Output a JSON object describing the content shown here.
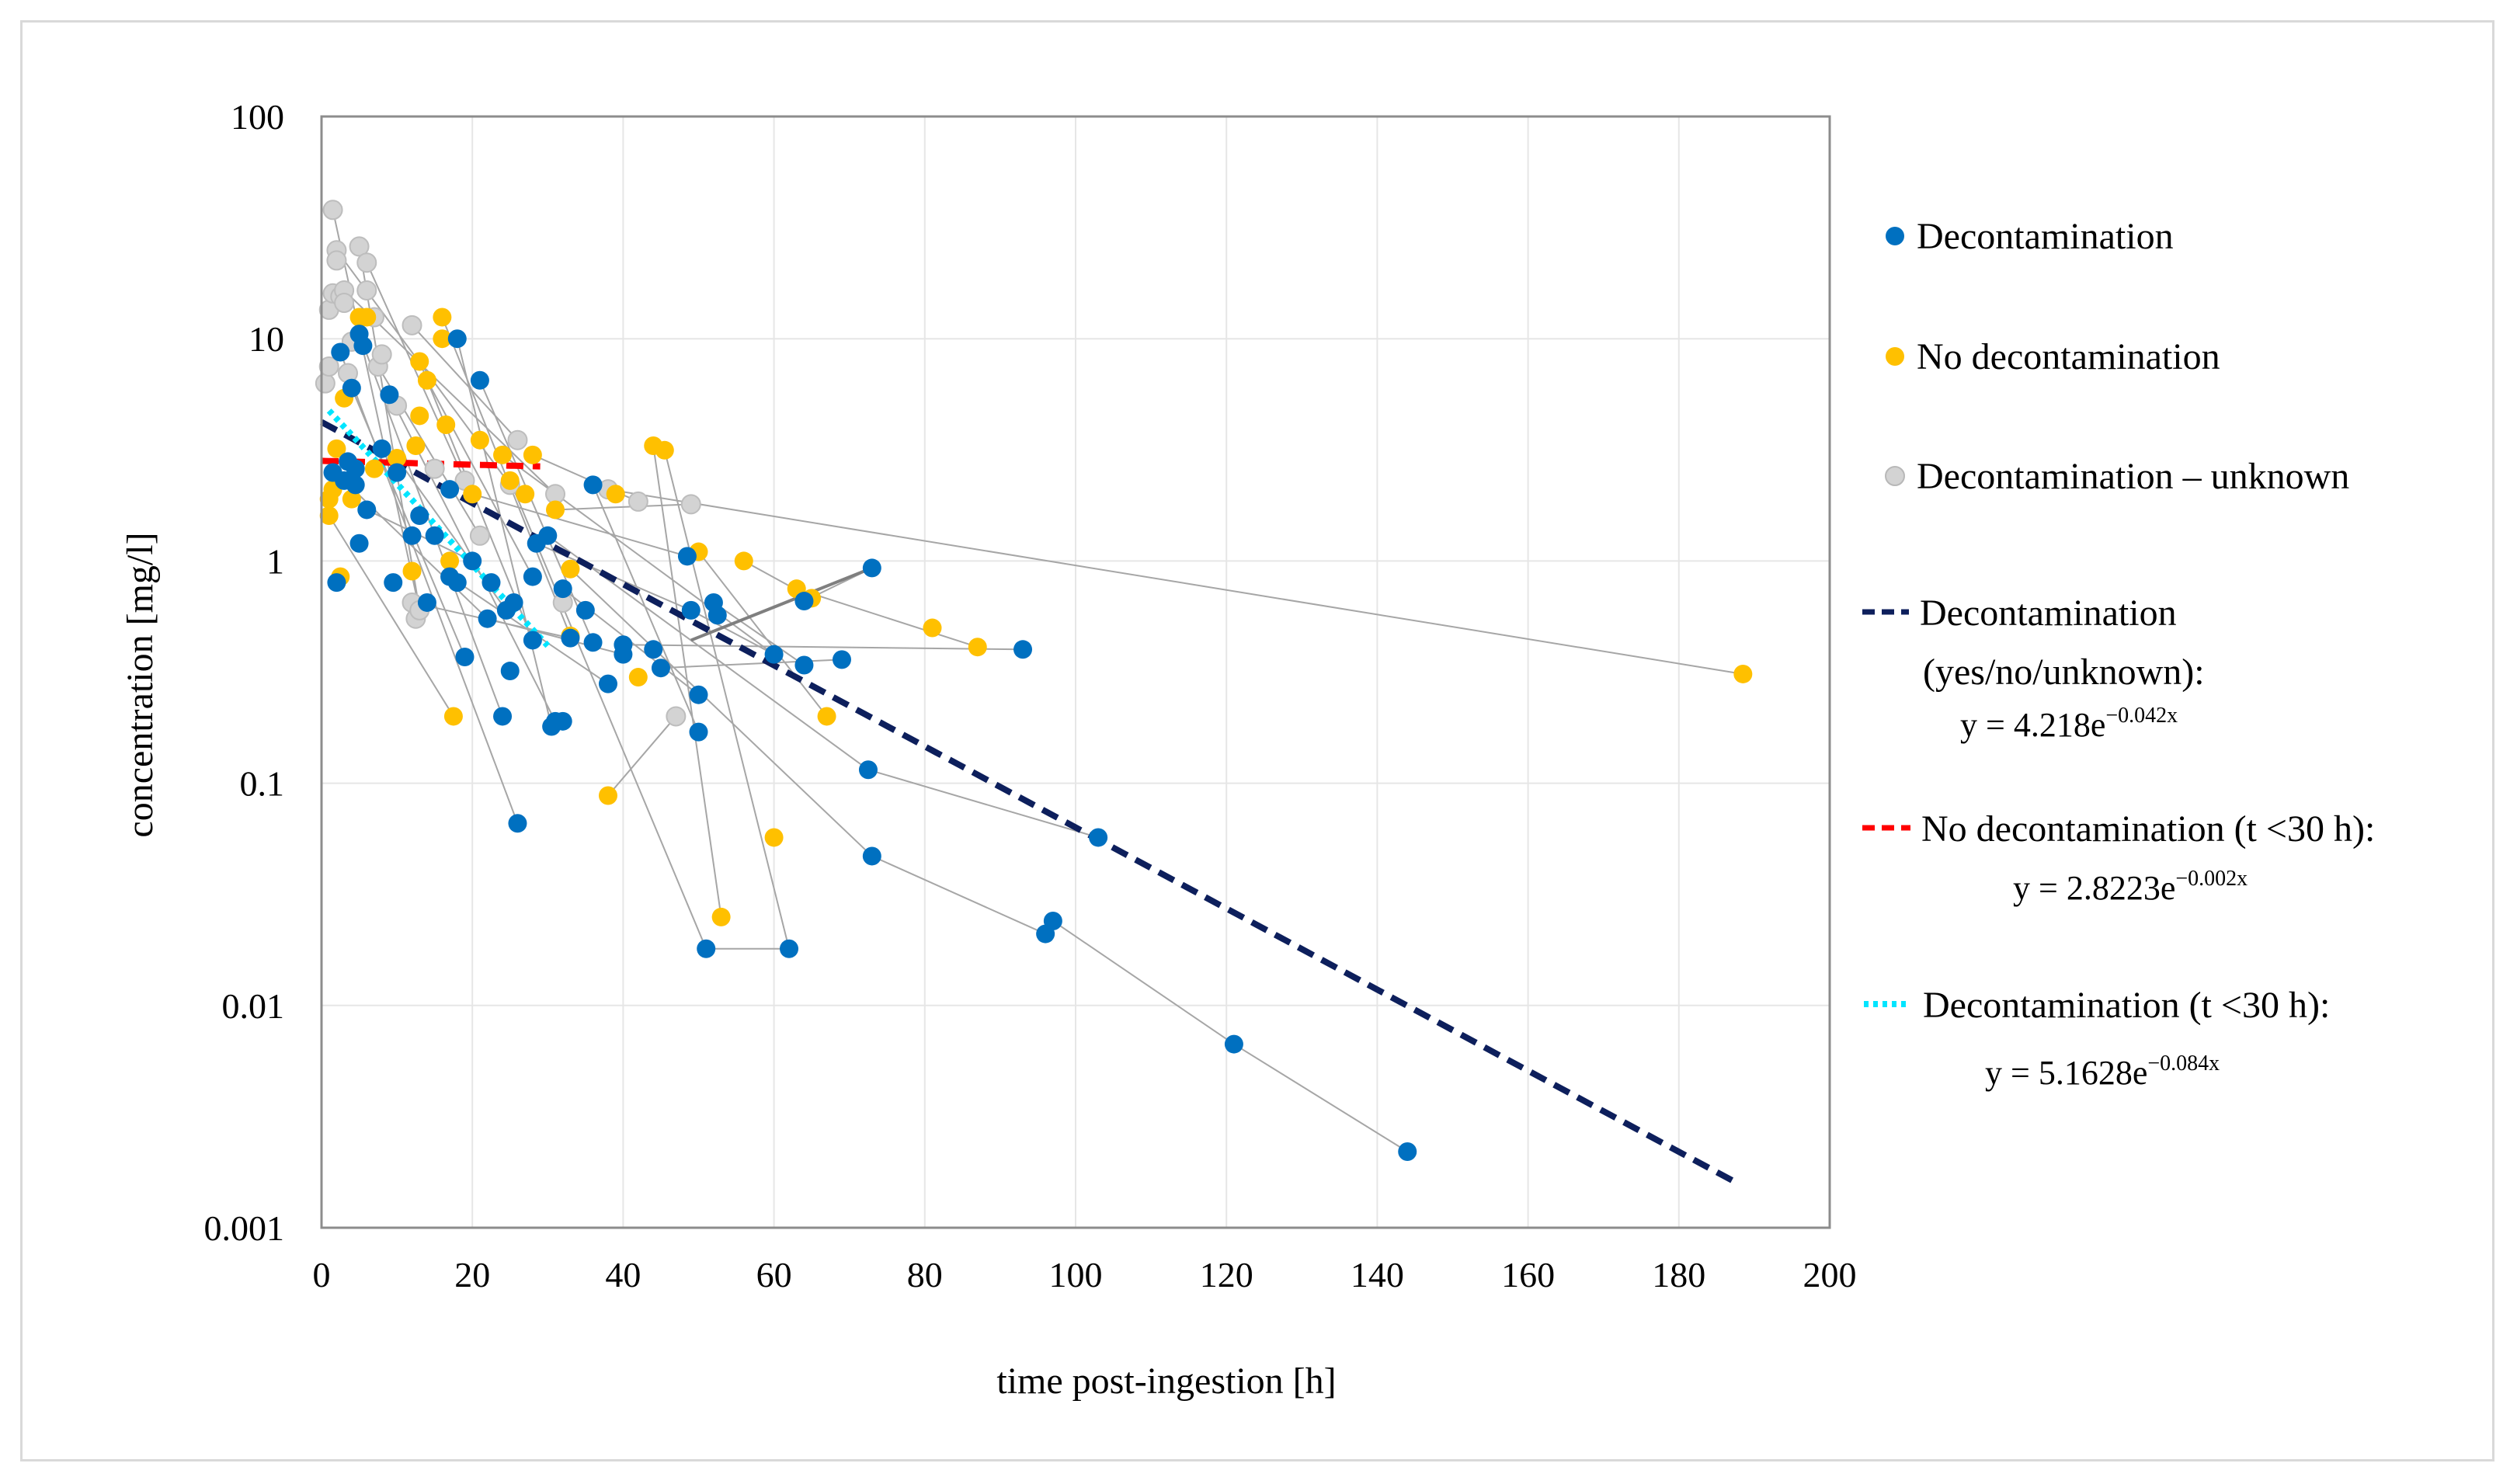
{
  "chart_data": {
    "type": "scatter",
    "xlabel": "time post-ingestion [h]",
    "ylabel": "concentration [mg/l]",
    "xlim": [
      0,
      200
    ],
    "ylim": [
      0.001,
      100
    ],
    "yscale": "log",
    "x_ticks": [
      "0",
      "20",
      "40",
      "60",
      "80",
      "100",
      "120",
      "140",
      "160",
      "180",
      "200"
    ],
    "y_ticks": [
      "100",
      "10",
      "1",
      "0.1",
      "0.01",
      "0.001"
    ],
    "grid": true,
    "legend_position": "right",
    "series": [
      {
        "name": "Decontamination",
        "color": "#0070c0",
        "points": [
          [
            1.5,
            2.5
          ],
          [
            2,
            0.8
          ],
          [
            2.5,
            8.7
          ],
          [
            3,
            2.3
          ],
          [
            3.5,
            2.8
          ],
          [
            4,
            6
          ],
          [
            4.5,
            2.2
          ],
          [
            4.5,
            2.6
          ],
          [
            5,
            10.5
          ],
          [
            5,
            1.2
          ],
          [
            5.5,
            9.3
          ],
          [
            6,
            1.7
          ],
          [
            8,
            3.2
          ],
          [
            9,
            5.6
          ],
          [
            9.5,
            0.8
          ],
          [
            10,
            2.5
          ],
          [
            12,
            1.3
          ],
          [
            13,
            1.6
          ],
          [
            14,
            0.65
          ],
          [
            15,
            1.3
          ],
          [
            17,
            2.1
          ],
          [
            17,
            0.85
          ],
          [
            18,
            10
          ],
          [
            18,
            0.8
          ],
          [
            19,
            0.37
          ],
          [
            20,
            1.0
          ],
          [
            21,
            6.5
          ],
          [
            22,
            0.55
          ],
          [
            22.5,
            0.8
          ],
          [
            24,
            0.2
          ],
          [
            24.5,
            0.6
          ],
          [
            25,
            0.32
          ],
          [
            25.5,
            0.65
          ],
          [
            26,
            0.066
          ],
          [
            28,
            0.44
          ],
          [
            28,
            0.85
          ],
          [
            28.5,
            1.2
          ],
          [
            30,
            1.3
          ],
          [
            30.5,
            0.18
          ],
          [
            31,
            0.19
          ],
          [
            32,
            0.19
          ],
          [
            32,
            0.75
          ],
          [
            33,
            0.45
          ],
          [
            35,
            0.6
          ],
          [
            36,
            0.43
          ],
          [
            36,
            2.2
          ],
          [
            38,
            0.28
          ],
          [
            40,
            0.42
          ],
          [
            40,
            0.38
          ],
          [
            44,
            0.4
          ],
          [
            45,
            0.33
          ],
          [
            48.5,
            1.05
          ],
          [
            49,
            0.6
          ],
          [
            50,
            0.25
          ],
          [
            50,
            0.17
          ],
          [
            51,
            0.018
          ],
          [
            52,
            0.65
          ],
          [
            52.5,
            0.57
          ],
          [
            60,
            0.38
          ],
          [
            62,
            0.018
          ],
          [
            64,
            0.66
          ],
          [
            64,
            0.34
          ],
          [
            69,
            0.36
          ],
          [
            72.5,
            0.115
          ],
          [
            73,
            0.93
          ],
          [
            73,
            0.047
          ],
          [
            93,
            0.4
          ],
          [
            96,
            0.021
          ],
          [
            97,
            0.024
          ],
          [
            103,
            0.057
          ],
          [
            121,
            0.0067
          ],
          [
            144,
            0.0022
          ]
        ]
      },
      {
        "name": "No decontamination",
        "color": "#ffc000",
        "points": [
          [
            1,
            1.6
          ],
          [
            1,
            1.9
          ],
          [
            1.5,
            2.1
          ],
          [
            2,
            3.2
          ],
          [
            2.5,
            0.85
          ],
          [
            3,
            5.4
          ],
          [
            4,
            1.9
          ],
          [
            5,
            12.5
          ],
          [
            6,
            12.5
          ],
          [
            7,
            2.6
          ],
          [
            10,
            2.9
          ],
          [
            12,
            0.9
          ],
          [
            12.5,
            3.3
          ],
          [
            13,
            7.9
          ],
          [
            13,
            4.5
          ],
          [
            14,
            6.5
          ],
          [
            16,
            12.5
          ],
          [
            16,
            10
          ],
          [
            16.5,
            4.1
          ],
          [
            17,
            1.0
          ],
          [
            17.5,
            0.2
          ],
          [
            20,
            2.0
          ],
          [
            21,
            3.5
          ],
          [
            24,
            3.0
          ],
          [
            25,
            2.3
          ],
          [
            27,
            2.0
          ],
          [
            28,
            3.0
          ],
          [
            31,
            1.7
          ],
          [
            33,
            0.92
          ],
          [
            33,
            0.46
          ],
          [
            38,
            0.088
          ],
          [
            39,
            2.0
          ],
          [
            42,
            0.3
          ],
          [
            44,
            3.3
          ],
          [
            45.5,
            3.15
          ],
          [
            50,
            1.1
          ],
          [
            53,
            0.025
          ],
          [
            56,
            1.0
          ],
          [
            60,
            0.057
          ],
          [
            63,
            0.75
          ],
          [
            65,
            0.68
          ],
          [
            67,
            0.2
          ],
          [
            81,
            0.5
          ],
          [
            87,
            0.41
          ],
          [
            188.5,
            0.31
          ]
        ]
      },
      {
        "name": "Decontamination – unknown",
        "color": "#d3d3d3",
        "points": [
          [
            0.5,
            6.3
          ],
          [
            1,
            7.5
          ],
          [
            1,
            13.5
          ],
          [
            1.5,
            38
          ],
          [
            1.5,
            16
          ],
          [
            2,
            25
          ],
          [
            2,
            22.5
          ],
          [
            2.5,
            15.5
          ],
          [
            3,
            16.5
          ],
          [
            3,
            14.5
          ],
          [
            3.5,
            7
          ],
          [
            4,
            9.7
          ],
          [
            5,
            26
          ],
          [
            6,
            22
          ],
          [
            6,
            16.5
          ],
          [
            7,
            12.5
          ],
          [
            7.5,
            7.5
          ],
          [
            8,
            8.5
          ],
          [
            10,
            5
          ],
          [
            12,
            11.5
          ],
          [
            12,
            0.65
          ],
          [
            12.5,
            0.55
          ],
          [
            13,
            0.6
          ],
          [
            15,
            2.6
          ],
          [
            19,
            2.3
          ],
          [
            21,
            1.3
          ],
          [
            25,
            2.2
          ],
          [
            26,
            3.5
          ],
          [
            31,
            2.0
          ],
          [
            32,
            0.65
          ],
          [
            38,
            2.1
          ],
          [
            42,
            1.85
          ],
          [
            47,
            0.2
          ],
          [
            49,
            1.8
          ]
        ]
      }
    ],
    "trendlines": [
      {
        "name": "Decontamination (yes/no/unknown)",
        "a": 4.218,
        "b": -0.042,
        "x_range": [
          0,
          188
        ],
        "color": "#0d1f5c",
        "style": "dashed"
      },
      {
        "name": "No decontamination (t <30 h)",
        "a": 2.8223,
        "b": -0.002,
        "x_range": [
          0,
          29
        ],
        "color": "#ff0000",
        "style": "dashed"
      },
      {
        "name": "Decontamination (t <30 h)",
        "a": 5.1628,
        "b": -0.084,
        "x_range": [
          1,
          30
        ],
        "color": "#00e5ff",
        "style": "dotted"
      }
    ]
  },
  "legend": {
    "items": [
      {
        "label": "Decontamination"
      },
      {
        "label": "No decontamination"
      },
      {
        "label": "Decontamination – unknown"
      },
      {
        "label": "Decontamination",
        "label2": "(yes/no/unknown):",
        "eq": "y = 4.218e",
        "exp": "−0.042x"
      },
      {
        "label": "No decontamination (t <30 h):",
        "eq": "y = 2.8223e",
        "exp": "−0.002x"
      },
      {
        "label": "Decontamination (t <30 h):",
        "eq": "y = 5.1628e",
        "exp": "−0.084x"
      }
    ]
  }
}
